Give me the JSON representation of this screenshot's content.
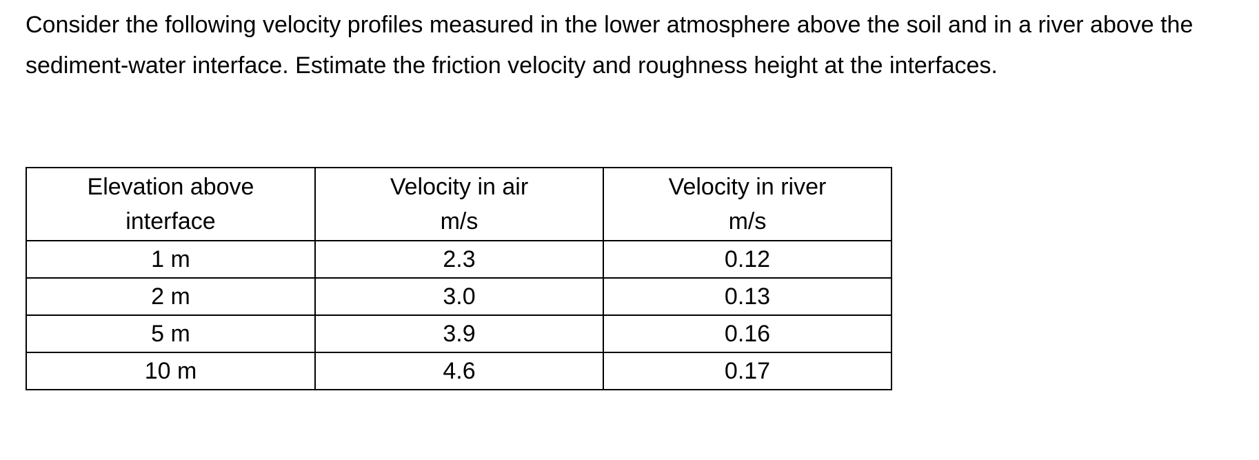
{
  "problem": {
    "text": "Consider the following velocity profiles measured in the lower atmosphere above the soil and in a river above the sediment-water interface. Estimate the friction velocity and roughness height at the interfaces."
  },
  "table": {
    "headers": [
      {
        "line1": "Elevation above",
        "line2": "interface"
      },
      {
        "line1": "Velocity in air",
        "line2": "m/s"
      },
      {
        "line1": "Velocity in river",
        "line2": "m/s"
      }
    ],
    "rows": [
      {
        "elevation": "1 m",
        "air": "2.3",
        "river": "0.12"
      },
      {
        "elevation": "2 m",
        "air": "3.0",
        "river": "0.13"
      },
      {
        "elevation": "5 m",
        "air": "3.9",
        "river": "0.16"
      },
      {
        "elevation": "10 m",
        "air": "4.6",
        "river": "0.17"
      }
    ]
  }
}
